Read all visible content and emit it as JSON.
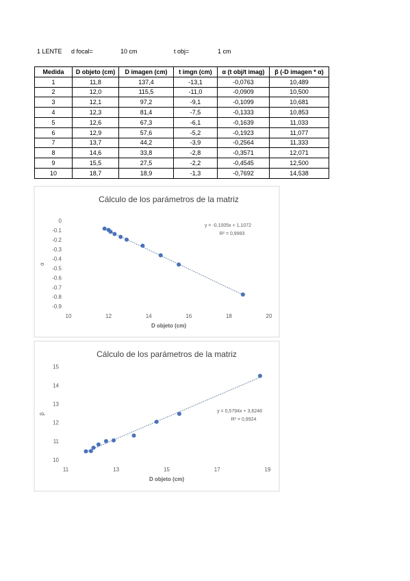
{
  "header": {
    "lens": "1 LENTE",
    "focal_label": "d focal=",
    "focal_value": "10 cm",
    "tobj_label": "t obj=",
    "tobj_value": "1 cm"
  },
  "table": {
    "columns": [
      "Medida",
      "D objeto (cm)",
      "D imagen (cm)",
      "t imgn (cm)",
      "α (t obj/t imag)",
      "β (-D imagen * α)"
    ],
    "rows": [
      [
        "1",
        "11,8",
        "137,4",
        "-13,1",
        "-0,0763",
        "10,489"
      ],
      [
        "2",
        "12,0",
        "115,5",
        "-11,0",
        "-0,0909",
        "10,500"
      ],
      [
        "3",
        "12,1",
        "97,2",
        "-9,1",
        "-0,1099",
        "10,681"
      ],
      [
        "4",
        "12,3",
        "81,4",
        "-7,5",
        "-0,1333",
        "10,853"
      ],
      [
        "5",
        "12,6",
        "67,3",
        "-6,1",
        "-0,1639",
        "11,033"
      ],
      [
        "6",
        "12,9",
        "57,6",
        "-5,2",
        "-0,1923",
        "11,077"
      ],
      [
        "7",
        "13,7",
        "44,2",
        "-3,9",
        "-0,2564",
        "11,333"
      ],
      [
        "8",
        "14,6",
        "33,8",
        "-2,8",
        "-0,3571",
        "12,071"
      ],
      [
        "9",
        "15,5",
        "27,5",
        "-2,2",
        "-0,4545",
        "12,500"
      ],
      [
        "10",
        "18,7",
        "18,9",
        "-1,3",
        "-0,7692",
        "14,538"
      ]
    ]
  },
  "chart_data": [
    {
      "type": "scatter",
      "title": "Cálculo de los parámetros de la matriz",
      "x_label": "D objeto (cm)",
      "y_label": "α",
      "x": [
        11.8,
        12.0,
        12.1,
        12.3,
        12.6,
        12.9,
        13.7,
        14.6,
        15.5,
        18.7
      ],
      "values": [
        -0.0763,
        -0.0909,
        -0.1099,
        -0.1333,
        -0.1639,
        -0.1923,
        -0.2564,
        -0.3571,
        -0.4545,
        -0.7692
      ],
      "color": "#4472c4",
      "xlim": [
        10,
        20
      ],
      "xticks": [
        10,
        12,
        14,
        16,
        18,
        20
      ],
      "ylim": [
        -0.9,
        0
      ],
      "yticks": [
        0,
        -0.1,
        -0.2,
        -0.3,
        -0.4,
        -0.5,
        -0.6,
        -0.7,
        -0.8,
        -0.9
      ],
      "trendline": {
        "slope": -0.1005,
        "intercept": 1.1072
      },
      "annotations": [
        "y = -0,1005x + 1,1072",
        "R² = 0,9993"
      ]
    },
    {
      "type": "scatter",
      "title": "Cálculo de los parámetros de la matriz",
      "x_label": "D objeto (cm)",
      "y_label": "β",
      "x": [
        11.8,
        12.0,
        12.1,
        12.3,
        12.6,
        12.9,
        13.7,
        14.6,
        15.5,
        18.7
      ],
      "values": [
        10.489,
        10.5,
        10.681,
        10.853,
        11.033,
        11.077,
        11.333,
        12.071,
        12.5,
        14.538
      ],
      "color": "#4472c4",
      "xlim": [
        11,
        19
      ],
      "xticks": [
        11,
        13,
        15,
        17,
        19
      ],
      "ylim": [
        10,
        15
      ],
      "yticks": [
        10,
        11,
        12,
        13,
        14,
        15
      ],
      "trendline": {
        "slope": 0.5794,
        "intercept": 3.6248
      },
      "annotations": [
        "y = 0,5794x + 3,6248",
        "R² = 0,9924"
      ]
    }
  ]
}
